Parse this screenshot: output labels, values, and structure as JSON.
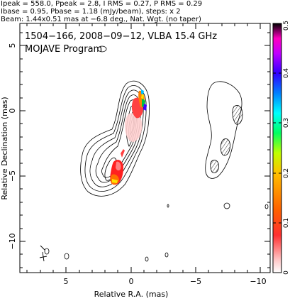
{
  "header": {
    "line1": "Ipeak = 558.0, Ppeak = 2.8, I RMS = 0.27, P RMS = 0.29",
    "line2": "Ibase = 0.95, Pbase = 1.18 (mJy/beam), steps: x 2",
    "line3": "Beam: 1.44x0.51 mas at −6.8 deg., Nat. Wgt. (no taper)"
  },
  "plot": {
    "title_line1": "1504−166, 2008−09−12, VLBA 15.4 GHz",
    "title_line2": "MOJAVE Program",
    "xlabel": "Relative R.A. (mas)",
    "ylabel": "Relative Declination (mas)",
    "xtick_labels": [
      "5",
      "0",
      "−5",
      "−10"
    ],
    "ytick_labels": [
      "5",
      "0",
      "−5",
      "−10"
    ]
  },
  "colorbar": {
    "tick_labels": [
      "0",
      "0.1",
      "0.2",
      "0.3",
      "0.4",
      "0.5"
    ],
    "colors": [
      "#ffffff",
      "#ff9999",
      "#ff0000",
      "#ff8000",
      "#ffff00",
      "#80ff00",
      "#00ff80",
      "#00ffff",
      "#0080ff",
      "#0000ff",
      "#8000ff",
      "#ff00ff",
      "#000000"
    ]
  },
  "chart_data": {
    "type": "contour",
    "title": "1504−166, 2008−09−12, VLBA 15.4 GHz",
    "subtitle": "MOJAVE Program",
    "xlabel": "Relative R.A. (mas)",
    "ylabel": "Relative Declination (mas)",
    "xlim": [
      8.3,
      -11.0
    ],
    "ylim": [
      -12.7,
      6.6
    ],
    "colorbar_range": [
      0,
      0.5
    ],
    "panels": [
      "left: total intensity contours with colored fractional polarization",
      "right: polarized intensity contours with hatching"
    ]
  }
}
